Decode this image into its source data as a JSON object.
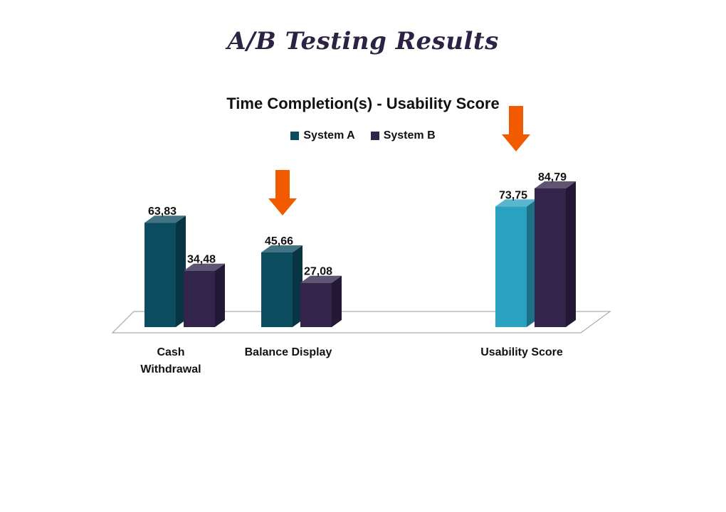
{
  "page": {
    "title": "A/B Testing Results"
  },
  "chart_data": {
    "type": "bar",
    "title": "Time Completion(s) - Usability Score",
    "legend_position": "top-center",
    "grid": false,
    "categories": [
      [
        "Cash",
        "Withdrawal"
      ],
      [
        "Balance Display"
      ],
      [
        "Usability Score"
      ]
    ],
    "series": [
      {
        "name": "System A",
        "values": [
          63.83,
          45.66,
          73.75
        ],
        "labels": [
          "63,83",
          "45,66",
          "73,75"
        ]
      },
      {
        "name": "System B",
        "values": [
          34.48,
          27.08,
          84.79
        ],
        "labels": [
          "34,48",
          "27,08",
          "84,79"
        ]
      }
    ],
    "ylim": [
      0,
      100
    ],
    "highlight_arrows": [
      1,
      2
    ],
    "colors": {
      "system_a": "#0b4c5f",
      "system_a_highlight": "#2aa1c0",
      "system_b": "#32244a",
      "arrow": "#f25a00",
      "floor_stroke": "#9a9a9a"
    }
  }
}
